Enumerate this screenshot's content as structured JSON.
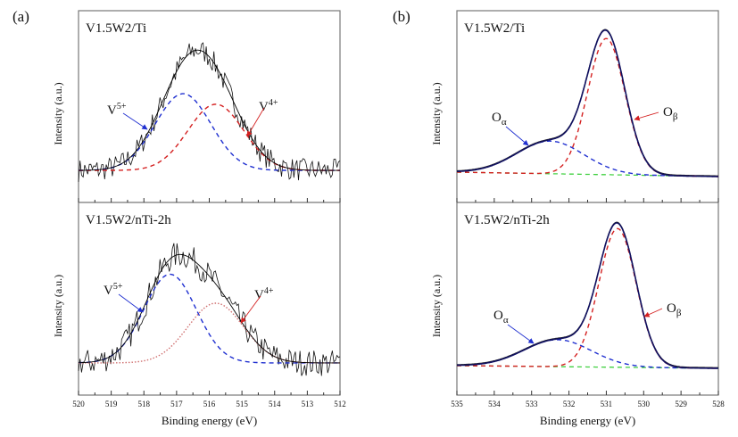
{
  "chart_data": [
    {
      "type": "line",
      "panel_label": "(a)",
      "xlabel": "Binding energy (eV)",
      "ylabel": "Intensity (a.u.)",
      "xlim": [
        520,
        512
      ],
      "x_ticks": [
        "520",
        "519",
        "518",
        "517",
        "516",
        "515",
        "514",
        "513",
        "512"
      ],
      "subplots": [
        {
          "title": "V1.5W2/Ti",
          "title_main": "V",
          "title_sub1": "1.5",
          "title_mid": "W",
          "title_sub2": "2",
          "title_end": "/Ti",
          "ylim": [
            0,
            1
          ],
          "baseline": 0.167,
          "noise": 0.06,
          "components": [
            {
              "name": "V5+",
              "label_main": "V",
              "label_sup": "5+",
              "center": 516.8,
              "amplitude": 0.4,
              "sigma": 0.85,
              "color": "#1f2fd0",
              "style": "dashed"
            },
            {
              "name": "V4+",
              "label_main": "V",
              "label_sup": "4+",
              "center": 515.8,
              "amplitude": 0.345,
              "sigma": 0.85,
              "color": "#d42020",
              "style": "dashed"
            }
          ]
        },
        {
          "title": "V1.5W2/nTi-2h",
          "title_main": "V",
          "title_sub1": "1.5",
          "title_mid": "W",
          "title_sub2": "2",
          "title_end": "/nTi-2h",
          "ylim": [
            0,
            1
          ],
          "baseline": 0.167,
          "noise": 0.07,
          "components": [
            {
              "name": "V5+",
              "label_main": "V",
              "label_sup": "5+",
              "center": 517.2,
              "amplitude": 0.46,
              "sigma": 0.8,
              "color": "#1f2fd0",
              "style": "dashed"
            },
            {
              "name": "V4+",
              "label_main": "V",
              "label_sup": "4+",
              "center": 515.8,
              "amplitude": 0.31,
              "sigma": 0.85,
              "color": "#d07070",
              "style": "dotted"
            }
          ]
        }
      ]
    },
    {
      "type": "line",
      "panel_label": "(b)",
      "xlabel": "Binding energy (eV)",
      "ylabel": "Intensity (a.u.)",
      "xlim": [
        535,
        528
      ],
      "x_ticks": [
        "535",
        "534",
        "533",
        "532",
        "531",
        "530",
        "529",
        "528"
      ],
      "subplots": [
        {
          "title": "V1.5W2/Ti",
          "title_main": "V",
          "title_sub1": "1.5",
          "title_mid": "W",
          "title_sub2": "2",
          "title_end": "/Ti",
          "ylim": [
            0,
            1
          ],
          "baseline_left": 0.158,
          "baseline_right": 0.135,
          "noise": 0.004,
          "components": [
            {
              "name": "Oα",
              "label_main": "O",
              "label_sub": "α",
              "center": 532.5,
              "amplitude": 0.17,
              "sigma": 0.9,
              "color": "#1f2fd0",
              "style": "dashed"
            },
            {
              "name": "Oβ",
              "label_main": "O",
              "label_sub": "β",
              "center": 531.0,
              "amplitude": 0.71,
              "sigma": 0.5,
              "color": "#d42020",
              "style": "dashed"
            }
          ]
        },
        {
          "title": "V1.5W2/nTi-2h",
          "title_main": "V",
          "title_sub1": "1.5",
          "title_mid": "W",
          "title_sub2": "2",
          "title_end": "/nTi-2h",
          "ylim": [
            0,
            1
          ],
          "baseline_left": 0.153,
          "baseline_right": 0.139,
          "noise": 0.004,
          "components": [
            {
              "name": "Oα",
              "label_main": "O",
              "label_sub": "α",
              "center": 532.3,
              "amplitude": 0.14,
              "sigma": 0.9,
              "color": "#1f2fd0",
              "style": "dashed"
            },
            {
              "name": "Oβ",
              "label_main": "O",
              "label_sub": "β",
              "center": 530.7,
              "amplitude": 0.72,
              "sigma": 0.5,
              "color": "#d42020",
              "style": "dashed"
            }
          ]
        }
      ]
    }
  ],
  "colors": {
    "fit": "#000000",
    "envelope_b": "#101060",
    "background_b": "#40d040"
  }
}
